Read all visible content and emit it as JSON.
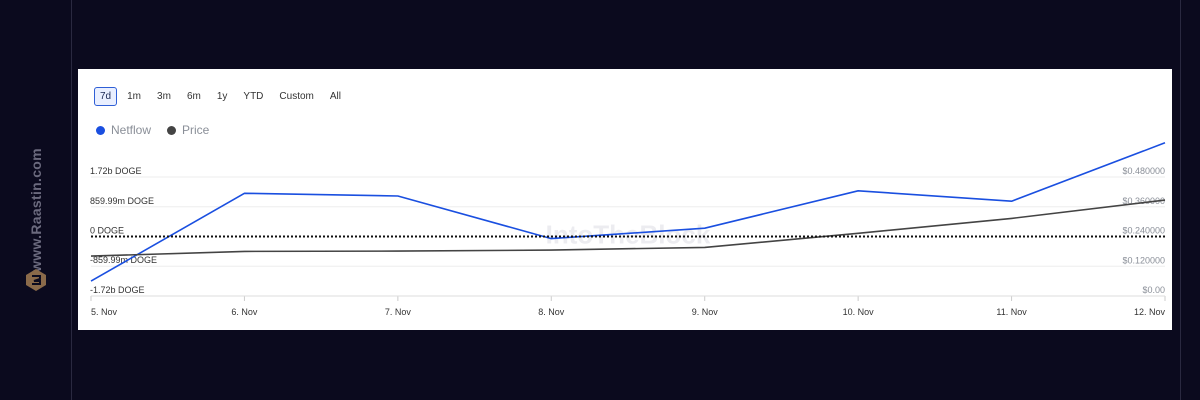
{
  "watermark": {
    "site": "www.Raastin.com"
  },
  "chart_controls": {
    "ranges": [
      "7d",
      "1m",
      "3m",
      "6m",
      "1y",
      "YTD",
      "Custom",
      "All"
    ],
    "active_range": "7d"
  },
  "chart_data": {
    "type": "line",
    "x": [
      "5. Nov",
      "6. Nov",
      "7. Nov",
      "8. Nov",
      "9. Nov",
      "10. Nov",
      "11. Nov",
      "12. Nov"
    ],
    "series": [
      {
        "name": "Netflow",
        "color": "#1a4fe0",
        "axis": "left",
        "values": [
          -1290000000.0,
          1250000000.0,
          1170000000.0,
          -60000000.0,
          240000000.0,
          1320000000.0,
          1020000000.0,
          2710000000.0
        ]
      },
      {
        "name": "Price",
        "color": "#444444",
        "axis": "right",
        "values": [
          0.161,
          0.18,
          0.181,
          0.185,
          0.196,
          0.253,
          0.313,
          0.387
        ]
      }
    ],
    "left_axis": {
      "ticks": [
        1720000000.0,
        859990000.0,
        0,
        -859990000.0,
        -1720000000.0
      ],
      "tick_labels": [
        "1.72b DOGE",
        "859.99m DOGE",
        "0 DOGE",
        "-859.99m DOGE",
        "-1.72b DOGE"
      ],
      "ylim": [
        -1720000000.0,
        1720000000.0
      ]
    },
    "right_axis": {
      "ticks": [
        0.48,
        0.36,
        0.24,
        0.12,
        0.0
      ],
      "tick_labels": [
        "$0.480000",
        "$0.360000",
        "$0.240000",
        "$0.120000",
        "$0.00"
      ],
      "ylim": [
        0,
        0.48
      ]
    },
    "zero_line": "dotted",
    "grid": true,
    "legend_position": "top-left",
    "watermark_text": "IntoTheBlock"
  }
}
